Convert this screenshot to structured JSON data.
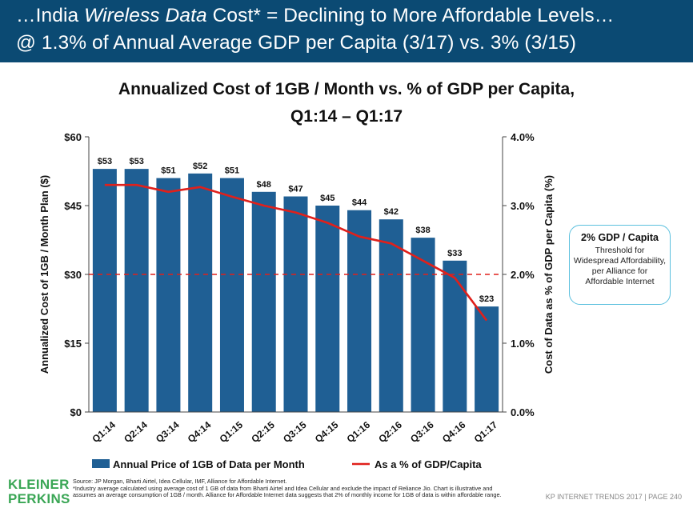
{
  "header": {
    "line1_prefix": "…India ",
    "line1_italic": "Wireless Data",
    "line1_suffix": " Cost* = Declining to More Affordable Levels…",
    "line2": "@ 1.3% of Annual Average GDP per Capita (3/17) vs. 3% (3/15)"
  },
  "chart_data": {
    "type": "bar",
    "title": "Annualized Cost of 1GB / Month vs. % of GDP per Capita,",
    "subtitle": "Q1:14 – Q1:17",
    "categories": [
      "Q1:14",
      "Q2:14",
      "Q3:14",
      "Q4:14",
      "Q1:15",
      "Q2:15",
      "Q3:15",
      "Q4:15",
      "Q1:16",
      "Q2:16",
      "Q3:16",
      "Q4:16",
      "Q1:17"
    ],
    "series": [
      {
        "name": "Annual Price of 1GB of Data per Month",
        "type": "bar",
        "axis": "left",
        "color": "#1f5f94",
        "values": [
          53,
          53,
          51,
          52,
          51,
          48,
          47,
          45,
          44,
          42,
          38,
          33,
          23
        ],
        "labels": [
          "$53",
          "$53",
          "$51",
          "$52",
          "$51",
          "$48",
          "$47",
          "$45",
          "$44",
          "$42",
          "$38",
          "$33",
          "$23"
        ]
      },
      {
        "name": "As a % of GDP/Capita",
        "type": "line",
        "axis": "right",
        "color": "#e0201b",
        "values": [
          3.3,
          3.3,
          3.2,
          3.27,
          3.13,
          3.0,
          2.9,
          2.75,
          2.55,
          2.45,
          2.2,
          1.95,
          1.33
        ]
      }
    ],
    "ylabel": "Annualized Cost of 1GB / Month Plan ($)",
    "ylabel_right": "Cost of Data as % of GDP per Capita (%)",
    "ylim": [
      0,
      60
    ],
    "ylim_right": [
      0,
      4
    ],
    "yticks": [
      "$0",
      "$15",
      "$30",
      "$45",
      "$60"
    ],
    "yticks_right": [
      "0.0%",
      "1.0%",
      "2.0%",
      "3.0%",
      "4.0%"
    ],
    "reference_line": {
      "value_right": 2.0,
      "style": "dashed",
      "color": "#e0201b"
    },
    "legend": [
      "Annual Price of 1GB of Data per Month",
      "As a % of GDP/Capita"
    ],
    "legend_position": "bottom"
  },
  "callout": {
    "heading": "2% GDP / Capita",
    "body": "Threshold for Widespread Affordability, per Alliance for Affordable Internet"
  },
  "logo": {
    "line1": "KLEINER",
    "line2": "PERKINS"
  },
  "source": {
    "line1": "Source: JP Morgan, Bharti Airtel, Idea Cellular, IMF, Alliance for Affordable Internet.",
    "line2": "*Industry average calculated using average cost of 1 GB of data from Bharti Airtel and Idea Cellular and exclude the impact of Reliance Jio. Chart is illustrative and assumes an average consumption of 1GB / month. Alliance for Affordable Internet data suggests that 2% of monthly income for 1GB of data is within affordable range."
  },
  "footer": "KP INTERNET TRENDS 2017  |  PAGE 240"
}
